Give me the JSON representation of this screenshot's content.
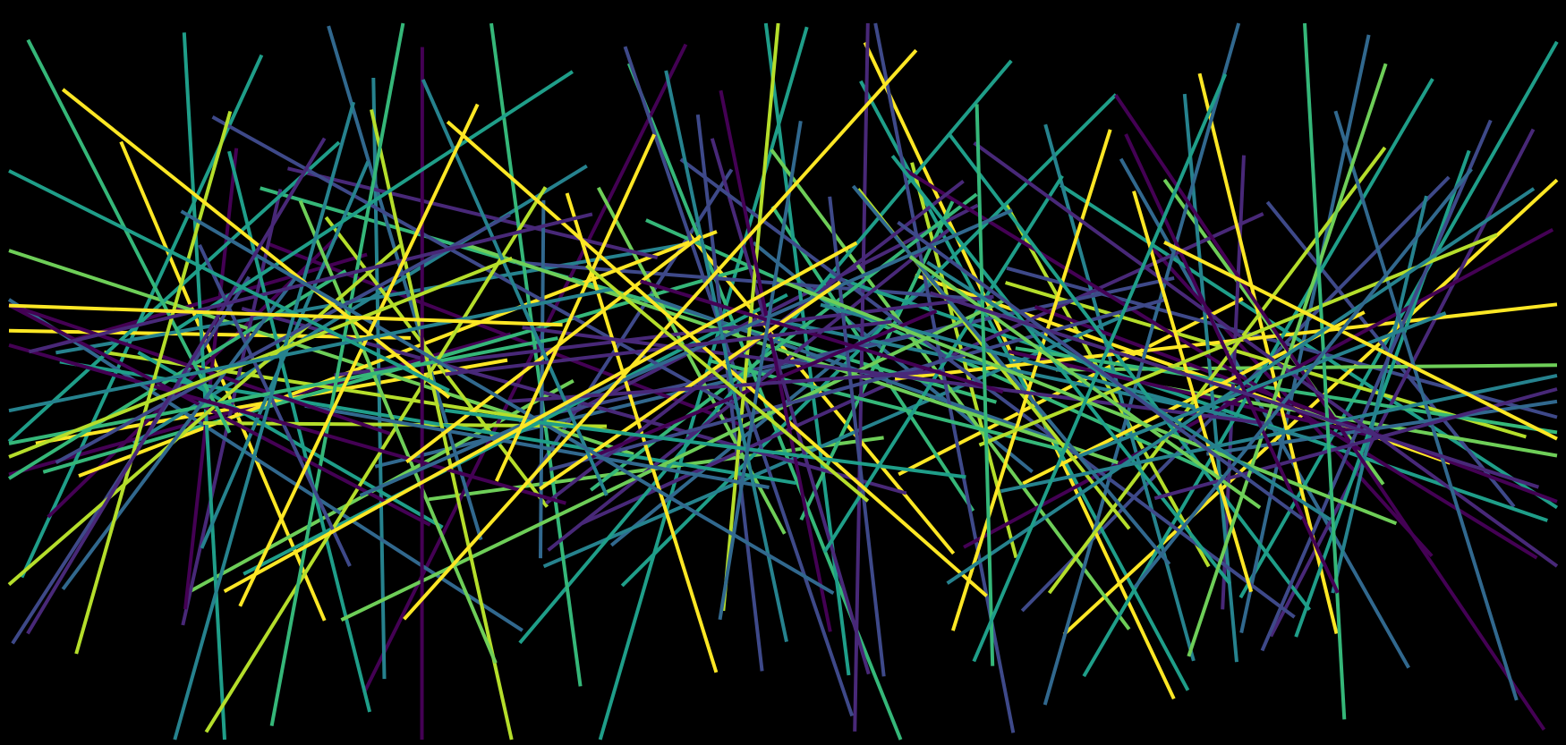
{
  "background": "#000000",
  "palette": [
    "#440154",
    "#482878",
    "#3e4989",
    "#31688e",
    "#26828e",
    "#1f9e89",
    "#35b779",
    "#6ece58",
    "#b5de2b",
    "#fde725"
  ],
  "line_count": 190,
  "segment_length_range": [
    380,
    860
  ],
  "random_seed": 20240611
}
